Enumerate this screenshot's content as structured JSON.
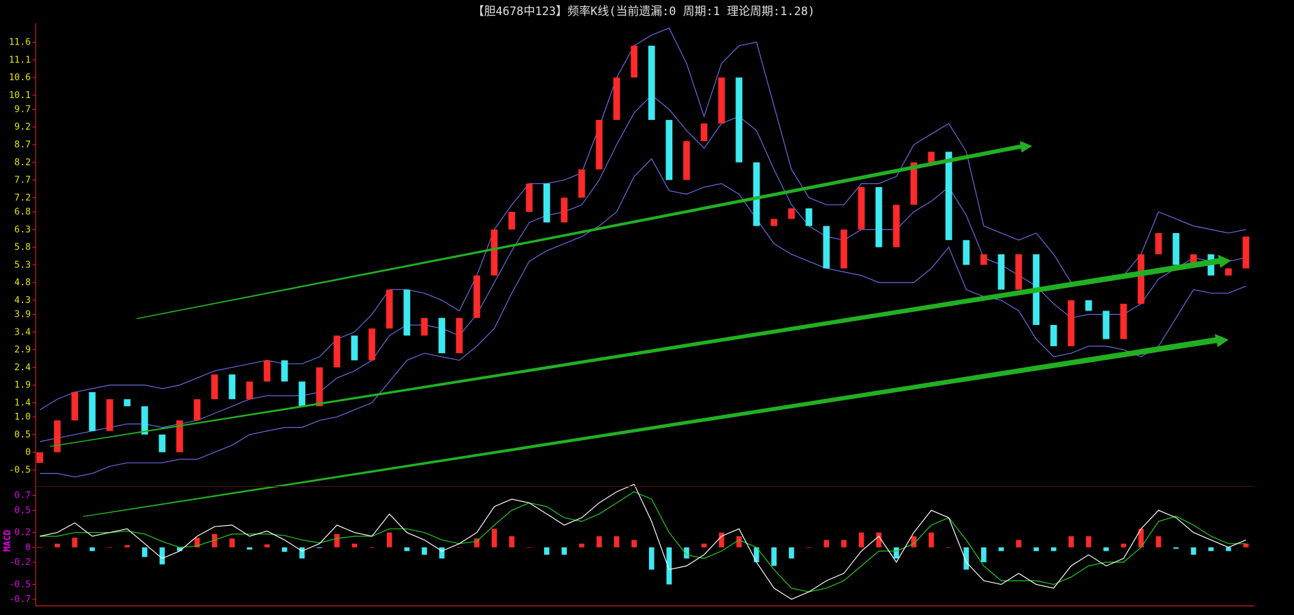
{
  "chart_data": [
    {
      "type": "candlestick",
      "title": "【胆4678中123】频率K线(当前遗漏:0 周期:1 理论周期:1.28)",
      "ylim": [
        -0.92,
        12.14
      ],
      "yticks": [
        -0.5,
        0,
        0.5,
        {
          "value": 1,
          "label": "1.0"
        },
        1.4,
        1.9,
        2.4,
        2.9,
        3.4,
        3.9,
        4.3,
        4.8,
        5.3,
        5.8,
        6.3,
        6.8,
        7.2,
        7.7,
        8.2,
        8.7,
        9.2,
        9.7,
        10.1,
        10.6,
        11.1,
        11.6
      ],
      "open": [
        -0.3,
        0.0,
        0.9,
        1.7,
        0.6,
        1.5,
        1.3,
        0.5,
        0.0,
        0.9,
        1.5,
        2.2,
        1.5,
        2.0,
        2.6,
        2.0,
        1.3,
        2.4,
        3.3,
        2.6,
        3.5,
        4.6,
        3.3,
        3.8,
        2.8,
        3.8,
        5.0,
        6.3,
        6.8,
        7.6,
        6.5,
        7.2,
        8.0,
        9.4,
        10.6,
        11.5,
        9.4,
        7.7,
        8.8,
        9.3,
        10.6,
        8.2,
        6.4,
        6.6,
        6.9,
        6.4,
        5.2,
        6.3,
        7.5,
        5.8,
        7.0,
        8.2,
        8.5,
        6.0,
        5.3,
        5.6,
        4.6,
        5.6,
        3.6,
        3.0,
        4.3,
        4.0,
        3.2,
        4.2,
        5.6,
        6.2,
        5.3,
        5.6,
        5.0,
        5.2
      ],
      "close": [
        0.0,
        0.9,
        1.7,
        0.6,
        1.5,
        1.3,
        0.5,
        0.0,
        0.9,
        1.5,
        2.2,
        1.5,
        2.0,
        2.6,
        2.0,
        1.3,
        2.4,
        3.3,
        2.6,
        3.5,
        4.6,
        3.3,
        3.8,
        2.8,
        3.8,
        5.0,
        6.3,
        6.8,
        7.6,
        6.5,
        7.2,
        8.0,
        9.4,
        10.6,
        11.5,
        9.4,
        7.7,
        8.8,
        9.3,
        10.6,
        8.2,
        6.4,
        6.6,
        6.9,
        6.4,
        5.2,
        6.3,
        7.5,
        5.8,
        7.0,
        8.2,
        8.5,
        6.0,
        5.3,
        5.6,
        4.6,
        5.6,
        3.6,
        3.0,
        4.3,
        4.0,
        3.2,
        4.2,
        5.6,
        6.2,
        5.3,
        5.6,
        5.0,
        5.2,
        6.1
      ],
      "upper": [
        1.2,
        1.5,
        1.7,
        1.8,
        1.9,
        1.9,
        1.9,
        1.8,
        1.9,
        2.1,
        2.3,
        2.4,
        2.5,
        2.6,
        2.5,
        2.5,
        2.7,
        3.2,
        3.4,
        3.9,
        4.6,
        4.6,
        4.5,
        4.3,
        4.0,
        5.0,
        6.3,
        7.0,
        7.6,
        7.6,
        7.7,
        7.9,
        9.2,
        10.6,
        11.5,
        11.8,
        12.0,
        11.0,
        9.5,
        11.0,
        11.5,
        11.6,
        9.8,
        8.0,
        7.2,
        7.0,
        7.0,
        7.6,
        7.6,
        7.8,
        8.7,
        9.0,
        9.3,
        8.5,
        6.4,
        6.2,
        6.0,
        6.2,
        5.6,
        4.8,
        4.8,
        4.9,
        5.0,
        5.6,
        6.8,
        6.6,
        6.4,
        6.3,
        6.2,
        6.3
      ],
      "middle": [
        0.3,
        0.4,
        0.5,
        0.6,
        0.7,
        0.8,
        0.8,
        0.7,
        0.8,
        0.9,
        1.1,
        1.3,
        1.5,
        1.6,
        1.6,
        1.6,
        1.7,
        2.1,
        2.3,
        2.6,
        3.3,
        3.6,
        3.6,
        3.5,
        3.3,
        3.9,
        4.8,
        5.7,
        6.5,
        6.7,
        6.8,
        7.0,
        7.7,
        8.7,
        9.6,
        10.1,
        9.7,
        9.1,
        8.6,
        9.3,
        9.5,
        9.1,
        8.0,
        7.0,
        6.4,
        6.1,
        6.0,
        6.3,
        6.3,
        6.3,
        6.8,
        7.1,
        7.5,
        6.7,
        5.5,
        5.3,
        5.0,
        4.7,
        4.2,
        3.8,
        3.9,
        3.9,
        3.9,
        4.2,
        4.9,
        5.2,
        5.5,
        5.4,
        5.4,
        5.5
      ],
      "lower": [
        -0.6,
        -0.6,
        -0.7,
        -0.6,
        -0.4,
        -0.3,
        -0.3,
        -0.3,
        -0.2,
        -0.2,
        0.0,
        0.2,
        0.5,
        0.6,
        0.7,
        0.7,
        0.9,
        1.0,
        1.2,
        1.4,
        2.0,
        2.6,
        2.8,
        2.7,
        2.6,
        3.0,
        3.5,
        4.5,
        5.4,
        5.7,
        5.9,
        6.1,
        6.4,
        6.8,
        7.8,
        8.3,
        7.4,
        7.3,
        7.5,
        7.6,
        7.3,
        6.6,
        5.9,
        5.6,
        5.4,
        5.2,
        5.1,
        5.0,
        4.8,
        4.8,
        4.8,
        5.2,
        5.8,
        4.6,
        4.4,
        4.3,
        4.0,
        3.2,
        2.7,
        2.8,
        3.0,
        3.0,
        2.9,
        2.7,
        3.0,
        3.8,
        4.6,
        4.5,
        4.5,
        4.7
      ],
      "up_color": "#ff2a2a",
      "down_color": "#3ee8f0",
      "band_color": "#6a6ae0",
      "tick_color": "#e6e600"
    },
    {
      "type": "macd",
      "ylabel": "MACD",
      "ylim": [
        -0.79,
        0.8
      ],
      "yticks": [
        -0.7,
        -0.5,
        -0.2,
        0,
        0.2,
        0.5,
        0.7
      ],
      "dif": [
        0.15,
        0.2,
        0.33,
        0.15,
        0.2,
        0.25,
        0.05,
        -0.15,
        -0.05,
        0.15,
        0.28,
        0.3,
        0.15,
        0.22,
        0.1,
        -0.05,
        0.05,
        0.3,
        0.2,
        0.15,
        0.45,
        0.2,
        0.1,
        -0.05,
        0.05,
        0.2,
        0.55,
        0.65,
        0.6,
        0.45,
        0.3,
        0.4,
        0.6,
        0.75,
        0.85,
        0.35,
        -0.3,
        -0.25,
        -0.1,
        0.15,
        0.25,
        -0.2,
        -0.55,
        -0.7,
        -0.6,
        -0.45,
        -0.35,
        -0.05,
        0.15,
        -0.2,
        0.2,
        0.5,
        0.4,
        -0.2,
        -0.45,
        -0.5,
        -0.35,
        -0.5,
        -0.55,
        -0.25,
        -0.1,
        -0.25,
        -0.15,
        0.25,
        0.5,
        0.4,
        0.2,
        0.1,
        0.0,
        0.1
      ],
      "dea": [
        0.15,
        0.15,
        0.2,
        0.2,
        0.2,
        0.22,
        0.18,
        0.08,
        0.0,
        0.02,
        0.1,
        0.18,
        0.18,
        0.18,
        0.16,
        0.1,
        0.06,
        0.12,
        0.15,
        0.15,
        0.25,
        0.25,
        0.2,
        0.1,
        0.05,
        0.08,
        0.3,
        0.5,
        0.6,
        0.55,
        0.4,
        0.35,
        0.45,
        0.6,
        0.75,
        0.65,
        0.2,
        -0.1,
        -0.15,
        -0.05,
        0.1,
        0.0,
        -0.3,
        -0.55,
        -0.6,
        -0.55,
        -0.45,
        -0.25,
        -0.05,
        -0.05,
        0.05,
        0.3,
        0.4,
        0.1,
        -0.25,
        -0.45,
        -0.45,
        -0.45,
        -0.5,
        -0.4,
        -0.25,
        -0.2,
        -0.2,
        0.0,
        0.35,
        0.42,
        0.3,
        0.15,
        0.05,
        0.05
      ],
      "hist": [
        0,
        0.05,
        0.13,
        -0.05,
        0,
        0.03,
        -0.13,
        -0.23,
        -0.05,
        0.13,
        0.18,
        0.12,
        -0.03,
        0.04,
        -0.06,
        -0.15,
        -0.01,
        0.18,
        0.05,
        0,
        0.2,
        -0.05,
        -0.1,
        -0.15,
        0,
        0.12,
        0.25,
        0.15,
        0,
        -0.1,
        -0.1,
        0.05,
        0.15,
        0.15,
        0.1,
        -0.3,
        -0.5,
        -0.15,
        0.05,
        0.2,
        0.15,
        -0.2,
        -0.25,
        -0.15,
        0,
        0.1,
        0.1,
        0.2,
        0.2,
        -0.15,
        0.15,
        0.2,
        0,
        -0.3,
        -0.2,
        -0.05,
        0.1,
        -0.05,
        -0.05,
        0.15,
        0.15,
        -0.05,
        0.05,
        0.25,
        0.15,
        -0.02,
        -0.1,
        -0.05,
        -0.05,
        0.05
      ],
      "dif_color": "#ffffff",
      "dea_color": "#22cc22",
      "up_color": "#ff2a2a",
      "down_color": "#3ee8f0",
      "tick_color": "#e000e0"
    }
  ]
}
